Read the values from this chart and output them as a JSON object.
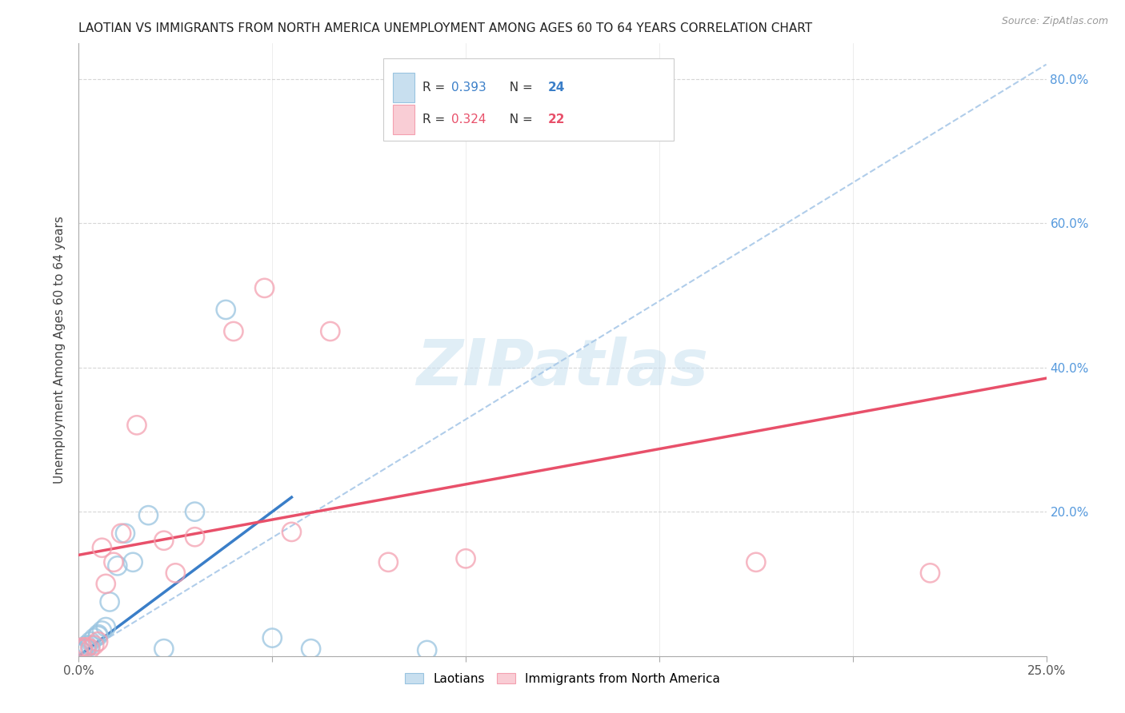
{
  "title": "LAOTIAN VS IMMIGRANTS FROM NORTH AMERICA UNEMPLOYMENT AMONG AGES 60 TO 64 YEARS CORRELATION CHART",
  "source": "Source: ZipAtlas.com",
  "ylabel": "Unemployment Among Ages 60 to 64 years",
  "xlim": [
    0.0,
    0.25
  ],
  "ylim": [
    0.0,
    0.85
  ],
  "xtick_positions": [
    0.0,
    0.05,
    0.1,
    0.15,
    0.2,
    0.25
  ],
  "xticklabels": [
    "0.0%",
    "",
    "",
    "",
    "",
    "25.0%"
  ],
  "ytick_positions": [
    0.0,
    0.2,
    0.4,
    0.6,
    0.8
  ],
  "yticklabels_right": [
    "",
    "20.0%",
    "40.0%",
    "60.0%",
    "80.0%"
  ],
  "color_blue": "#99C4E0",
  "color_pink": "#F4A0B0",
  "color_blue_line": "#3A7EC8",
  "color_pink_line": "#E8506A",
  "color_dashed": "#A8C8E8",
  "watermark": "ZIPatlas",
  "legend_r1": "R = 0.393",
  "legend_n1": "N = 24",
  "legend_r2": "R = 0.324",
  "legend_n2": "N = 22",
  "laotian_x": [
    0.0,
    0.0,
    0.001,
    0.001,
    0.002,
    0.002,
    0.003,
    0.003,
    0.004,
    0.005,
    0.005,
    0.006,
    0.007,
    0.008,
    0.01,
    0.012,
    0.014,
    0.018,
    0.022,
    0.03,
    0.038,
    0.05,
    0.06,
    0.09
  ],
  "laotian_y": [
    0.003,
    0.005,
    0.005,
    0.01,
    0.01,
    0.015,
    0.015,
    0.02,
    0.025,
    0.028,
    0.03,
    0.035,
    0.04,
    0.075,
    0.125,
    0.17,
    0.13,
    0.195,
    0.01,
    0.2,
    0.48,
    0.025,
    0.01,
    0.008
  ],
  "north_america_x": [
    0.0,
    0.001,
    0.002,
    0.003,
    0.004,
    0.005,
    0.006,
    0.007,
    0.009,
    0.011,
    0.015,
    0.022,
    0.025,
    0.03,
    0.04,
    0.048,
    0.055,
    0.065,
    0.08,
    0.1,
    0.175,
    0.22
  ],
  "north_america_y": [
    0.01,
    0.012,
    0.012,
    0.01,
    0.015,
    0.02,
    0.15,
    0.1,
    0.13,
    0.17,
    0.32,
    0.16,
    0.115,
    0.165,
    0.45,
    0.51,
    0.172,
    0.45,
    0.13,
    0.135,
    0.13,
    0.115
  ],
  "blue_line_x0": 0.0,
  "blue_line_y0": 0.0,
  "blue_line_x1": 0.055,
  "blue_line_y1": 0.22,
  "pink_line_x0": 0.0,
  "pink_line_y0": 0.14,
  "pink_line_x1": 0.25,
  "pink_line_y1": 0.385
}
